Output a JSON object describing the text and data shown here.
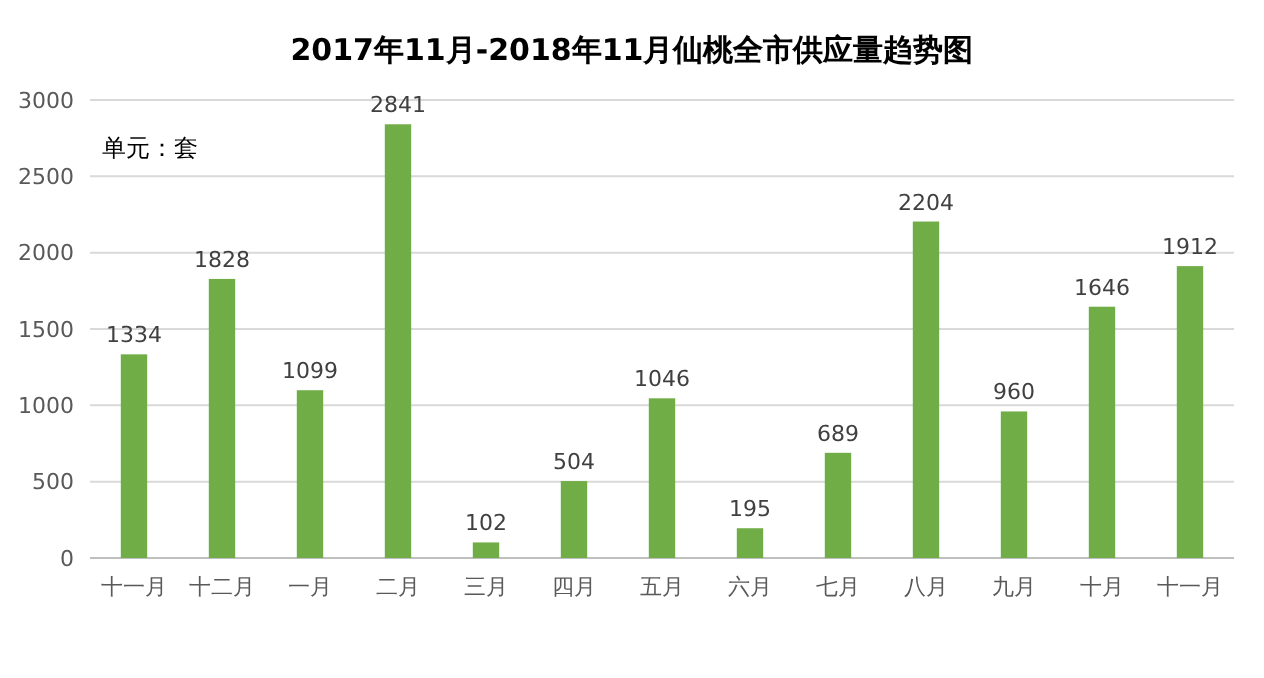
{
  "chart_data": {
    "type": "bar",
    "title": "2017年11月-2018年11月仙桃全市供应量趋势图",
    "categories": [
      "十一月",
      "十二月",
      "一月",
      "二月",
      "三月",
      "四月",
      "五月",
      "六月",
      "七月",
      "八月",
      "九月",
      "十月",
      "十一月"
    ],
    "values": [
      1334,
      1828,
      1099,
      2841,
      102,
      504,
      1046,
      195,
      689,
      2204,
      960,
      1646,
      1912
    ],
    "color": "#70ad47",
    "ylim": [
      0,
      3000
    ],
    "yticks": [
      0,
      500,
      1000,
      1500,
      2000,
      2500,
      3000
    ],
    "grid": "y",
    "data_labels": true,
    "annotations": [
      "单元：套"
    ]
  }
}
